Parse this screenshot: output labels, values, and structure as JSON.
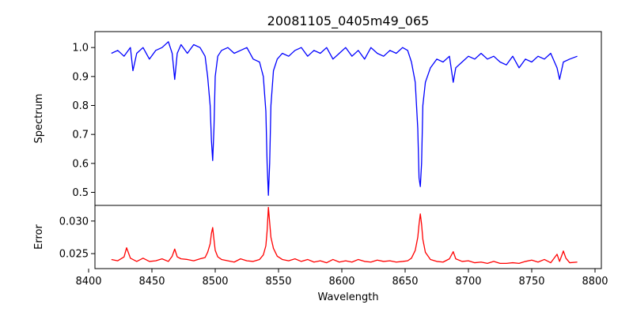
{
  "chart_data": [
    {
      "type": "line",
      "title": "20081105_0405m49_065",
      "xlabel": "",
      "ylabel": "Spectrum",
      "xlim": [
        8405,
        8805
      ],
      "ylim": [
        0.455,
        1.055
      ],
      "yticks": [
        0.5,
        0.6,
        0.7,
        0.8,
        0.9,
        1.0
      ],
      "ytick_labels": [
        "0.5",
        "0.6",
        "0.7",
        "0.8",
        "0.9",
        "1.0"
      ],
      "grid": false,
      "series": [
        {
          "color": "#0000ff",
          "x": [
            8418,
            8423,
            8428,
            8433,
            8435,
            8438,
            8443,
            8448,
            8453,
            8458,
            8463,
            8466,
            8468,
            8470,
            8473,
            8478,
            8483,
            8488,
            8492,
            8494,
            8496,
            8497,
            8498,
            8499,
            8500,
            8502,
            8505,
            8510,
            8515,
            8520,
            8525,
            8530,
            8535,
            8538,
            8540,
            8541,
            8542,
            8543,
            8544,
            8546,
            8549,
            8553,
            8558,
            8563,
            8568,
            8573,
            8578,
            8583,
            8588,
            8593,
            8598,
            8603,
            8608,
            8613,
            8618,
            8623,
            8628,
            8633,
            8638,
            8643,
            8648,
            8652,
            8655,
            8658,
            8660,
            8661,
            8662,
            8663,
            8664,
            8666,
            8670,
            8675,
            8680,
            8685,
            8688,
            8690,
            8695,
            8700,
            8705,
            8710,
            8715,
            8720,
            8725,
            8730,
            8735,
            8740,
            8745,
            8750,
            8755,
            8760,
            8765,
            8770,
            8772,
            8775,
            8780,
            8786
          ],
          "y": [
            0.98,
            0.99,
            0.97,
            1.0,
            0.92,
            0.98,
            1.0,
            0.96,
            0.99,
            1.0,
            1.02,
            0.98,
            0.89,
            0.98,
            1.01,
            0.98,
            1.01,
            1.0,
            0.97,
            0.9,
            0.8,
            0.68,
            0.61,
            0.72,
            0.9,
            0.97,
            0.99,
            1.0,
            0.98,
            0.99,
            1.0,
            0.96,
            0.95,
            0.9,
            0.78,
            0.6,
            0.49,
            0.6,
            0.8,
            0.92,
            0.96,
            0.98,
            0.97,
            0.99,
            1.0,
            0.97,
            0.99,
            0.98,
            1.0,
            0.96,
            0.98,
            1.0,
            0.97,
            0.99,
            0.96,
            1.0,
            0.98,
            0.97,
            0.99,
            0.98,
            1.0,
            0.99,
            0.95,
            0.88,
            0.72,
            0.55,
            0.52,
            0.6,
            0.8,
            0.88,
            0.93,
            0.96,
            0.95,
            0.97,
            0.88,
            0.93,
            0.95,
            0.97,
            0.96,
            0.98,
            0.96,
            0.97,
            0.95,
            0.94,
            0.97,
            0.93,
            0.96,
            0.95,
            0.97,
            0.96,
            0.98,
            0.93,
            0.89,
            0.95,
            0.96,
            0.97
          ]
        }
      ]
    },
    {
      "type": "line",
      "title": "",
      "xlabel": "Wavelength",
      "ylabel": "Error",
      "xlim": [
        8405,
        8805
      ],
      "ylim": [
        0.0227,
        0.0324
      ],
      "xticks": [
        8400,
        8450,
        8500,
        8550,
        8600,
        8650,
        8700,
        8750,
        8800
      ],
      "xtick_labels": [
        "8400",
        "8450",
        "8500",
        "8550",
        "8600",
        "8650",
        "8700",
        "8750",
        "8800"
      ],
      "yticks": [
        0.025,
        0.03
      ],
      "ytick_labels": [
        "0.025",
        "0.030"
      ],
      "grid": false,
      "series": [
        {
          "color": "#ff0000",
          "x": [
            8418,
            8423,
            8428,
            8430,
            8433,
            8438,
            8443,
            8448,
            8453,
            8458,
            8463,
            8466,
            8468,
            8470,
            8473,
            8478,
            8483,
            8488,
            8492,
            8494,
            8496,
            8497,
            8498,
            8499,
            8500,
            8502,
            8505,
            8510,
            8515,
            8520,
            8525,
            8530,
            8535,
            8538,
            8540,
            8541,
            8542,
            8543,
            8544,
            8546,
            8549,
            8553,
            8558,
            8563,
            8568,
            8573,
            8578,
            8583,
            8588,
            8593,
            8598,
            8603,
            8608,
            8613,
            8618,
            8623,
            8628,
            8633,
            8638,
            8643,
            8648,
            8652,
            8655,
            8658,
            8660,
            8661,
            8662,
            8663,
            8664,
            8666,
            8670,
            8675,
            8680,
            8685,
            8688,
            8690,
            8695,
            8700,
            8705,
            8710,
            8715,
            8720,
            8725,
            8730,
            8735,
            8740,
            8745,
            8750,
            8755,
            8760,
            8765,
            8770,
            8772,
            8775,
            8777,
            8780,
            8786
          ],
          "y": [
            0.0241,
            0.0239,
            0.0245,
            0.0259,
            0.0243,
            0.0238,
            0.0243,
            0.0238,
            0.0239,
            0.0242,
            0.0238,
            0.0246,
            0.0257,
            0.0245,
            0.0242,
            0.0241,
            0.0239,
            0.0242,
            0.0244,
            0.0252,
            0.0265,
            0.0281,
            0.029,
            0.0272,
            0.0255,
            0.0245,
            0.0241,
            0.0239,
            0.0237,
            0.0242,
            0.0239,
            0.0238,
            0.0241,
            0.0248,
            0.0262,
            0.0285,
            0.0321,
            0.0298,
            0.0275,
            0.0258,
            0.0246,
            0.0241,
            0.0239,
            0.0242,
            0.0238,
            0.0241,
            0.0237,
            0.0239,
            0.0236,
            0.0241,
            0.0237,
            0.0239,
            0.0237,
            0.0241,
            0.0238,
            0.0237,
            0.024,
            0.0238,
            0.0239,
            0.0237,
            0.0238,
            0.0239,
            0.0243,
            0.0255,
            0.0275,
            0.0295,
            0.0311,
            0.0295,
            0.0272,
            0.0252,
            0.0241,
            0.0238,
            0.0237,
            0.0242,
            0.0253,
            0.0242,
            0.0238,
            0.0239,
            0.0236,
            0.0237,
            0.0235,
            0.0238,
            0.0235,
            0.0235,
            0.0236,
            0.0235,
            0.0238,
            0.024,
            0.0237,
            0.0241,
            0.0236,
            0.0249,
            0.0238,
            0.0254,
            0.0243,
            0.0236,
            0.0237
          ]
        }
      ]
    }
  ]
}
